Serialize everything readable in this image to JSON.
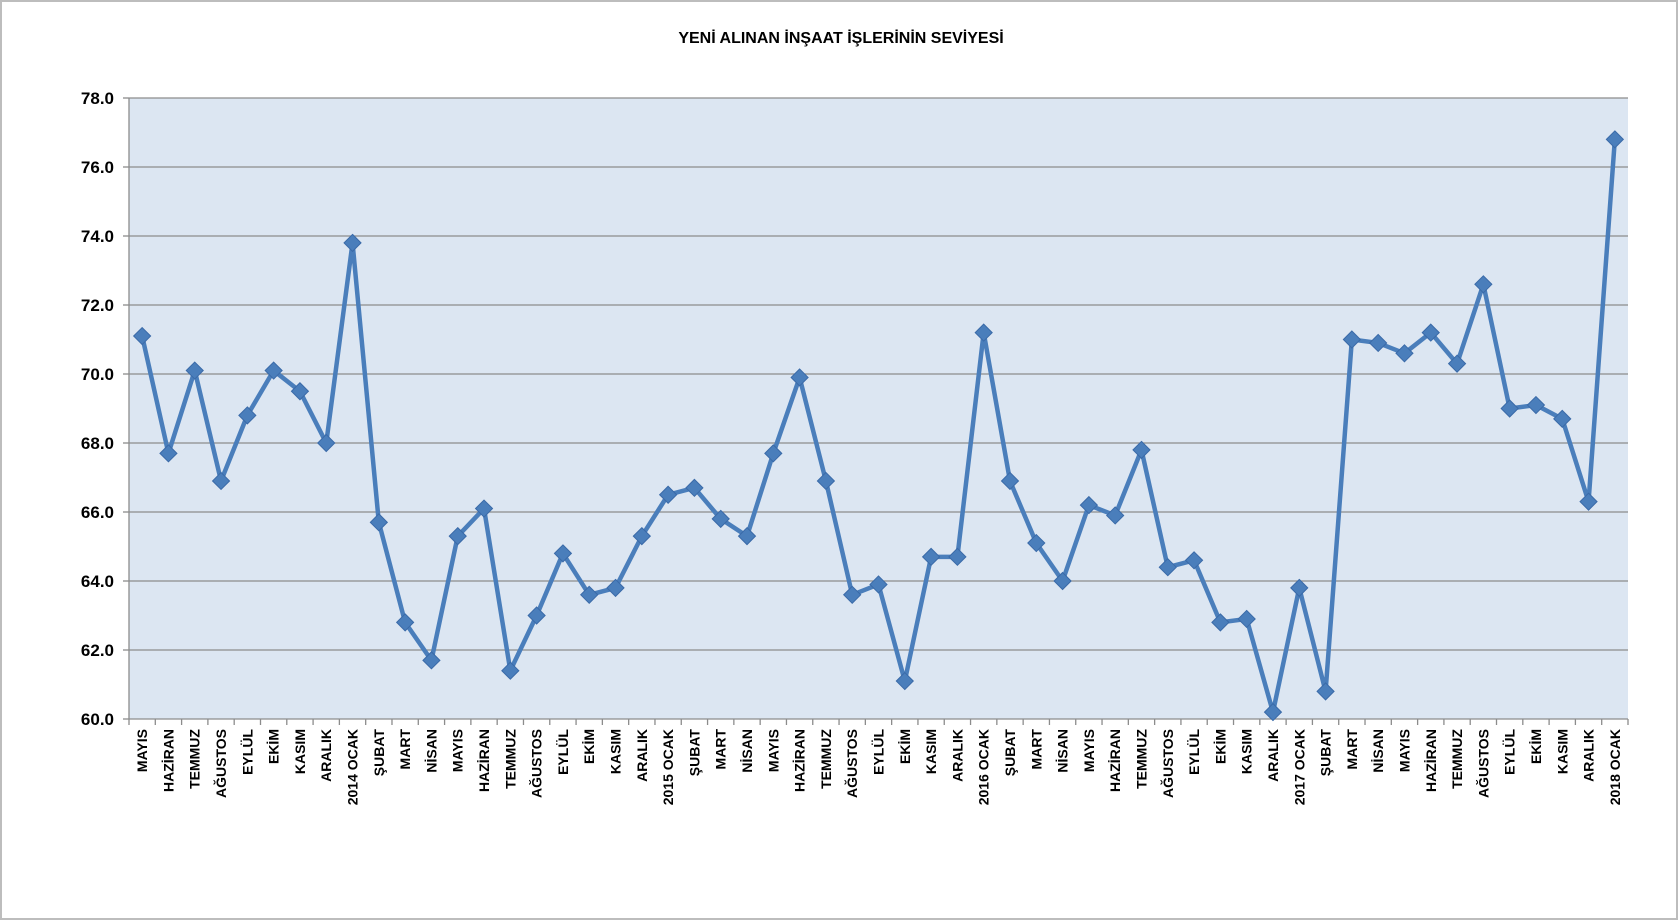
{
  "chart_data": {
    "type": "line",
    "title": "YENİ ALINAN İNŞAAT İŞLERİNİN SEVİYESİ",
    "xlabel": "",
    "ylabel": "",
    "ylim": [
      60.0,
      78.0
    ],
    "yticks": [
      "60.0",
      "62.0",
      "64.0",
      "66.0",
      "68.0",
      "70.0",
      "72.0",
      "74.0",
      "76.0",
      "78.0"
    ],
    "grid": true,
    "legend": "none",
    "colors": {
      "plot_background": "#dce6f2",
      "line": "#4a7ebb",
      "marker": "#4a7ebb",
      "gridline": "#8c8c8c",
      "axis": "#8c8c8c"
    },
    "categories": [
      "MAYIS",
      "HAZİRAN",
      "TEMMUZ",
      "AĞUSTOS",
      "EYLÜL",
      "EKİM",
      "KASIM",
      "ARALIK",
      "2014 OCAK",
      "ŞUBAT",
      "MART",
      "NİSAN",
      "MAYIS",
      "HAZİRAN",
      "TEMMUZ",
      "AĞUSTOS",
      "EYLÜL",
      "EKİM",
      "KASIM",
      "ARALIK",
      "2015 OCAK",
      "ŞUBAT",
      "MART",
      "NİSAN",
      "MAYIS",
      "HAZİRAN",
      "TEMMUZ",
      "AĞUSTOS",
      "EYLÜL",
      "EKİM",
      "KASIM",
      "ARALIK",
      "2016 OCAK",
      "ŞUBAT",
      "MART",
      "NİSAN",
      "MAYIS",
      "HAZİRAN",
      "TEMMUZ",
      "AĞUSTOS",
      "EYLÜL",
      "EKİM",
      "KASIM",
      "ARALIK",
      "2017 OCAK",
      "ŞUBAT",
      "MART",
      "NİSAN",
      "MAYIS",
      "HAZİRAN",
      "TEMMUZ",
      "AĞUSTOS",
      "EYLÜL",
      "EKİM",
      "KASIM",
      "ARALIK",
      "2018 OCAK"
    ],
    "series": [
      {
        "values": [
          71.1,
          67.7,
          70.1,
          66.9,
          68.8,
          70.1,
          69.5,
          68.0,
          73.8,
          65.7,
          62.8,
          61.7,
          65.3,
          66.1,
          61.4,
          63.0,
          64.8,
          63.6,
          63.8,
          65.3,
          66.5,
          66.7,
          65.8,
          65.3,
          67.7,
          69.9,
          66.9,
          63.6,
          63.9,
          61.1,
          64.7,
          64.7,
          71.2,
          66.9,
          65.1,
          64.0,
          66.2,
          65.9,
          67.8,
          64.4,
          64.6,
          62.8,
          62.9,
          60.2,
          63.8,
          60.8,
          71.0,
          70.9,
          70.6,
          71.2,
          70.3,
          72.6,
          69.0,
          69.1,
          68.7,
          66.3,
          76.8
        ]
      }
    ]
  }
}
